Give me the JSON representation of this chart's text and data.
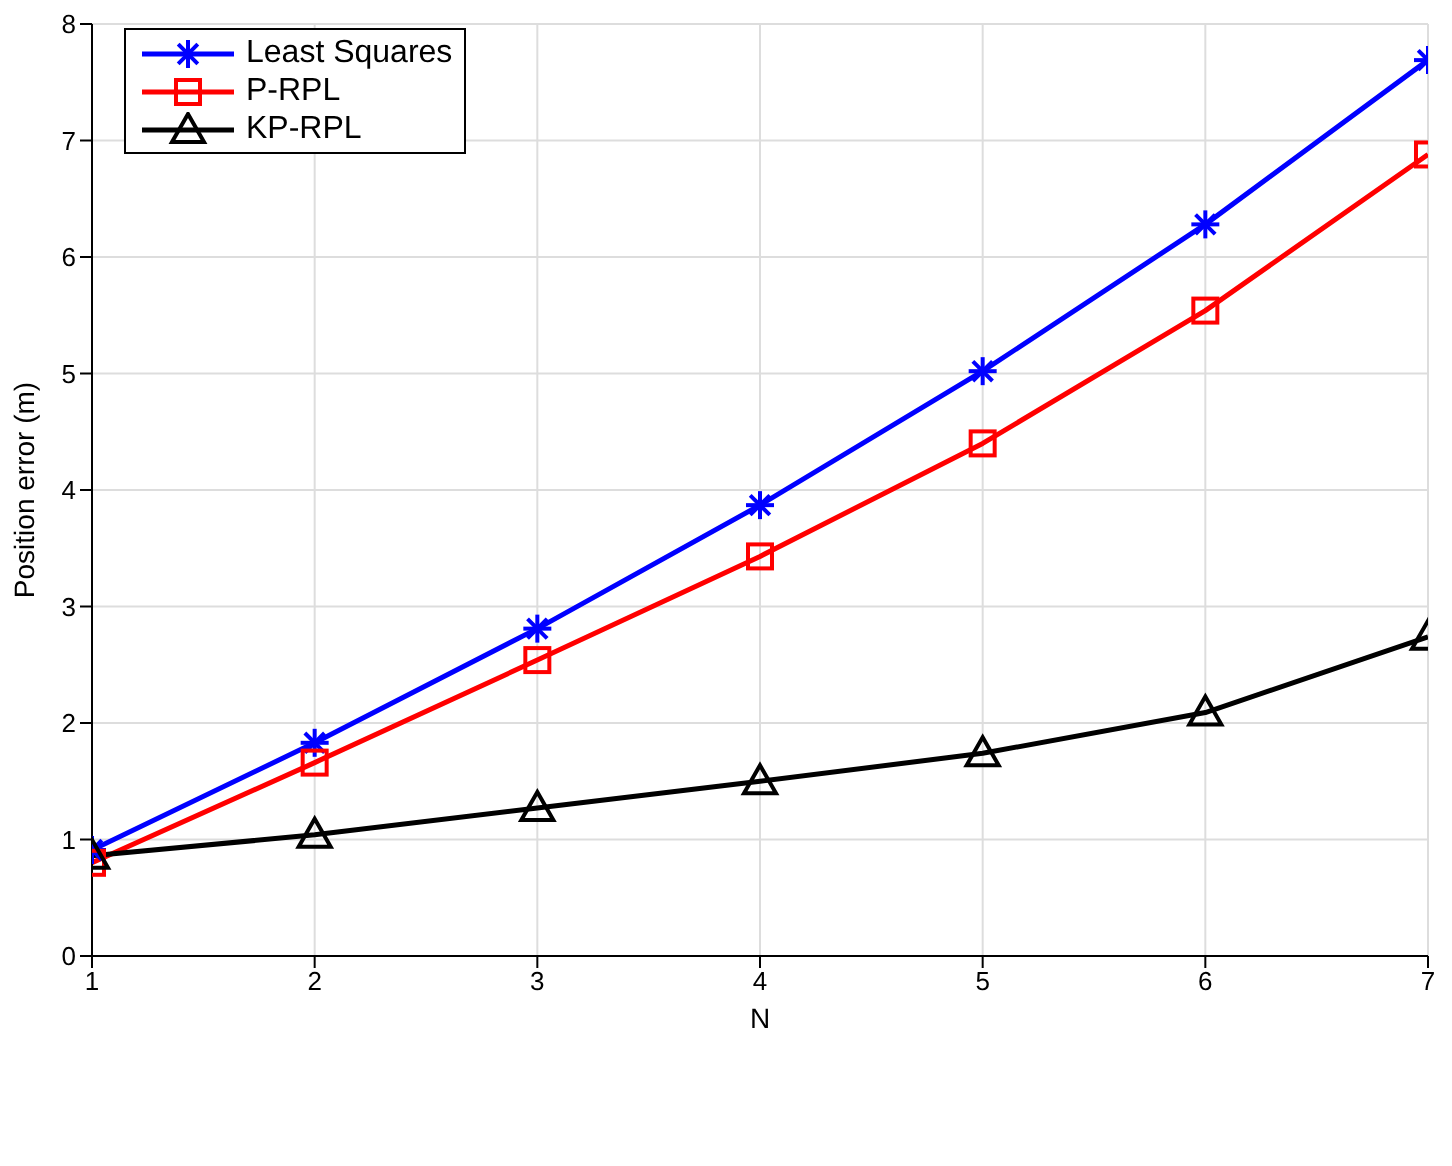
{
  "chart_data": {
    "type": "line",
    "xlabel": "N",
    "ylabel": "Position error (m)",
    "x": [
      1,
      2,
      3,
      4,
      5,
      6,
      7
    ],
    "series": [
      {
        "name": "Least Squares",
        "color": "#0000ff",
        "marker": "cross",
        "values": [
          0.91,
          1.83,
          2.81,
          3.87,
          5.02,
          6.28,
          7.69
        ]
      },
      {
        "name": "P-RPL",
        "color": "#ff0000",
        "marker": "square",
        "values": [
          0.8,
          1.66,
          2.54,
          3.43,
          4.4,
          5.54,
          6.88
        ]
      },
      {
        "name": "KP-RPL",
        "color": "#000000",
        "marker": "triangle",
        "values": [
          0.86,
          1.04,
          1.27,
          1.5,
          1.74,
          2.09,
          2.74
        ]
      }
    ],
    "xlim": [
      1,
      7
    ],
    "xticks": [
      1,
      2,
      3,
      4,
      5,
      6,
      7
    ],
    "ylim": [
      0,
      8
    ],
    "yticks": [
      0,
      1,
      2,
      3,
      4,
      5,
      6,
      7,
      8
    ],
    "grid": true,
    "legend": "top left",
    "line_style": "solid"
  }
}
